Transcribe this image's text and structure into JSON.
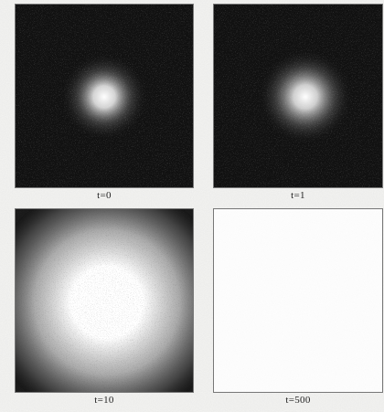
{
  "figure": {
    "panels": [
      {
        "caption": "t=0",
        "background": "#111111",
        "glow": "#ffffff"
      },
      {
        "caption": "t=1",
        "background": "#111111",
        "glow": "#ffffff"
      },
      {
        "caption": "t=10",
        "background": "#111111",
        "glow": "#ffffff"
      },
      {
        "caption": "t=500",
        "background": "#fdfdfd",
        "glow": "#ffffff"
      }
    ]
  }
}
